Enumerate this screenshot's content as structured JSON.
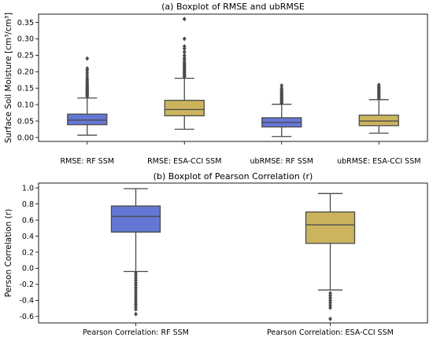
{
  "colors": {
    "rf": "#6577d4",
    "esa": "#ccb45e",
    "outline": "#4a4a4a",
    "frame": "#000000"
  },
  "chart_data": [
    {
      "type": "box",
      "title": "(a) Boxplot of RMSE and ubRMSE",
      "ylabel": "Surface Soil Moisture [cm³/cm³]",
      "ylim": [
        -0.012,
        0.375
      ],
      "yticks": [
        0.0,
        0.05,
        0.1,
        0.15,
        0.2,
        0.25,
        0.3,
        0.35
      ],
      "ytick_labels": [
        "0.00",
        "0.05",
        "0.10",
        "0.15",
        "0.20",
        "0.25",
        "0.30",
        "0.35"
      ],
      "categories": [
        "RMSE: RF SSM",
        "RMSE: ESA-CCI SSM",
        "ubRMSE: RF SSM",
        "ubRMSE: ESA-CCI SSM"
      ],
      "boxes": [
        {
          "color_key": "rf",
          "whisker_low": 0.007,
          "q1": 0.039,
          "median": 0.053,
          "q3": 0.071,
          "whisker_high": 0.12,
          "fliers": [
            0.124,
            0.128,
            0.131,
            0.134,
            0.137,
            0.14,
            0.143,
            0.146,
            0.15,
            0.153,
            0.157,
            0.161,
            0.165,
            0.17,
            0.175,
            0.181,
            0.188,
            0.196,
            0.204,
            0.21,
            0.24
          ]
        },
        {
          "color_key": "esa",
          "whisker_low": 0.025,
          "q1": 0.066,
          "median": 0.085,
          "q3": 0.113,
          "whisker_high": 0.18,
          "fliers": [
            0.184,
            0.188,
            0.192,
            0.196,
            0.2,
            0.204,
            0.208,
            0.212,
            0.216,
            0.22,
            0.225,
            0.23,
            0.236,
            0.242,
            0.25,
            0.26,
            0.27,
            0.277,
            0.3,
            0.36
          ]
        },
        {
          "color_key": "rf",
          "whisker_low": 0.003,
          "q1": 0.032,
          "median": 0.046,
          "q3": 0.06,
          "whisker_high": 0.101,
          "fliers": [
            0.104,
            0.108,
            0.112,
            0.116,
            0.12,
            0.124,
            0.128,
            0.132,
            0.136,
            0.14,
            0.145,
            0.15,
            0.158
          ]
        },
        {
          "color_key": "esa",
          "whisker_low": 0.013,
          "q1": 0.036,
          "median": 0.05,
          "q3": 0.068,
          "whisker_high": 0.115,
          "fliers": [
            0.119,
            0.123,
            0.127,
            0.131,
            0.135,
            0.139,
            0.143,
            0.147,
            0.151,
            0.155,
            0.16
          ]
        }
      ]
    },
    {
      "type": "box",
      "title": "(b) Boxplot of Pearson Correlation (r)",
      "ylabel": "Person Correlation (r)",
      "ylim": [
        -0.68,
        1.06
      ],
      "yticks": [
        -0.6,
        -0.4,
        -0.2,
        0.0,
        0.2,
        0.4,
        0.6,
        0.8,
        1.0
      ],
      "ytick_labels": [
        "-0.6",
        "-0.4",
        "-0.2",
        "0.0",
        "0.2",
        "0.4",
        "0.6",
        "0.8",
        "1.0"
      ],
      "categories": [
        "Pearson Correlation: RF SSM",
        "Pearson Correlation: ESA-CCI SSM"
      ],
      "boxes": [
        {
          "color_key": "rf",
          "whisker_low": -0.04,
          "q1": 0.45,
          "median": 0.645,
          "q3": 0.775,
          "whisker_high": 0.99,
          "fliers": [
            -0.06,
            -0.09,
            -0.12,
            -0.15,
            -0.18,
            -0.21,
            -0.24,
            -0.27,
            -0.3,
            -0.33,
            -0.36,
            -0.39,
            -0.42,
            -0.45,
            -0.48,
            -0.51,
            -0.57
          ]
        },
        {
          "color_key": "esa",
          "whisker_low": -0.27,
          "q1": 0.31,
          "median": 0.54,
          "q3": 0.7,
          "whisker_high": 0.93,
          "fliers": [
            -0.31,
            -0.34,
            -0.37,
            -0.4,
            -0.43,
            -0.46,
            -0.49,
            -0.63
          ]
        }
      ]
    }
  ]
}
